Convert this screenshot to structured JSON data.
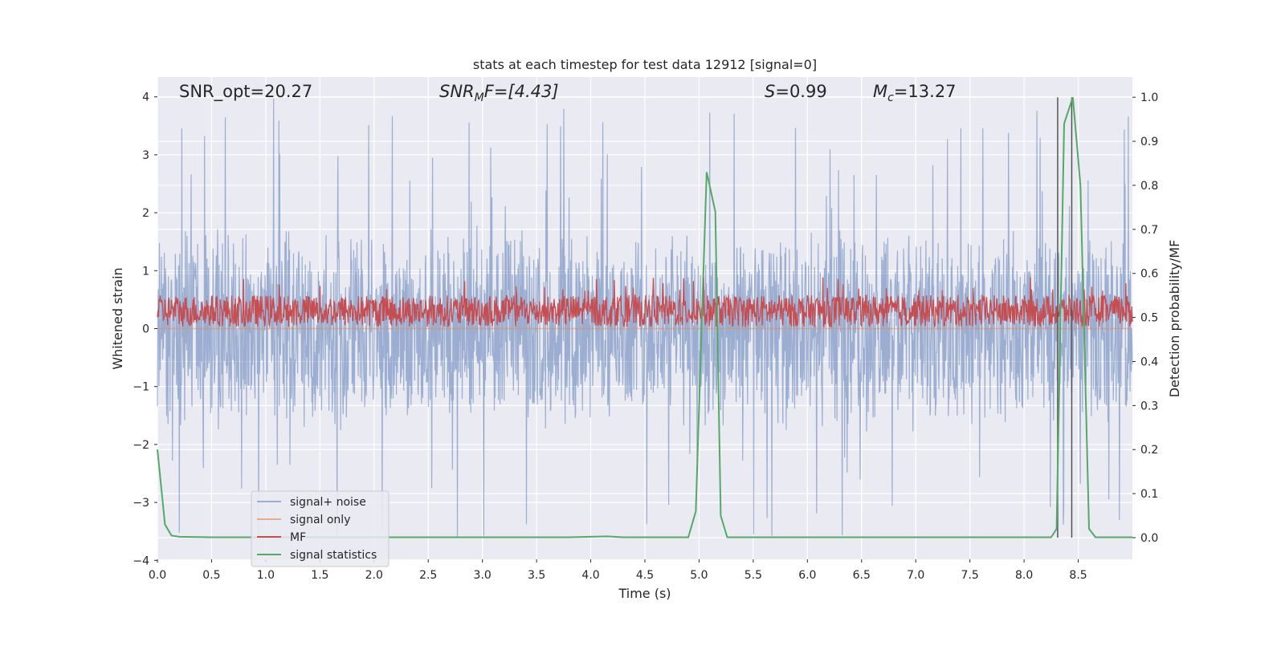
{
  "chart_data": {
    "type": "line",
    "title": "stats at each timestep for test data 12912 [signal=0]",
    "xlabel": "Time (s)",
    "ylabel_left": "Whitened strain",
    "ylabel_right": "Detection probability/MF",
    "xlim": [
      0.0,
      9.0
    ],
    "ylim_left": [
      -4,
      4.35
    ],
    "ylim_right": [
      -0.05,
      1.04
    ],
    "x_ticks": [
      "0.0",
      "0.5",
      "1.0",
      "1.5",
      "2.0",
      "2.5",
      "3.0",
      "3.5",
      "4.0",
      "4.5",
      "5.0",
      "5.5",
      "6.0",
      "6.5",
      "7.0",
      "7.5",
      "8.0",
      "8.5"
    ],
    "y_ticks_left": [
      "4",
      "3",
      "2",
      "1",
      "0",
      "−1",
      "−2",
      "−3",
      "−4"
    ],
    "y_ticks_right": [
      "1.0",
      "0.9",
      "0.8",
      "0.7",
      "0.6",
      "0.5",
      "0.4",
      "0.3",
      "0.2",
      "0.1",
      "0.0"
    ],
    "grid": true,
    "legend_position": "lower-left",
    "annotations": {
      "snr_opt": "SNR_opt=20.27",
      "snr_mf_main": "SNR",
      "snr_mf_sub": "M",
      "snr_mf_rest": "F=[4.43]",
      "s_main": "S",
      "s_rest": "=0.99",
      "mc_main": "M",
      "mc_sub": "c",
      "mc_rest": "=13.27"
    },
    "series": [
      {
        "name": "signal+ noise",
        "color": "#4c72b0",
        "note_values": "dense noise, approx range -3.3 to 4.0"
      },
      {
        "name": "signal only",
        "color": "#dd8452",
        "values_constant": 0.0
      },
      {
        "name": "MF",
        "color": "#c44e52",
        "note_values": "approx range 0.0 to 0.9"
      },
      {
        "name": "signal statistics",
        "color": "#55a868",
        "axis": "right",
        "x": [
          0.0,
          0.07,
          0.13,
          0.2,
          0.5,
          1.0,
          2.0,
          3.0,
          3.8,
          4.15,
          4.3,
          4.9,
          4.97,
          5.02,
          5.07,
          5.15,
          5.2,
          5.26,
          5.35,
          6.0,
          7.0,
          8.0,
          8.25,
          8.3,
          8.37,
          8.45,
          8.52,
          8.6,
          8.66,
          8.75,
          9.0
        ],
        "y": [
          0.2,
          0.03,
          0.005,
          0.002,
          0.001,
          0.001,
          0.001,
          0.001,
          0.001,
          0.003,
          0.001,
          0.001,
          0.06,
          0.45,
          0.83,
          0.74,
          0.05,
          0.001,
          0.001,
          0.001,
          0.001,
          0.001,
          0.001,
          0.02,
          0.94,
          1.0,
          0.8,
          0.02,
          0.001,
          0.001,
          0.001
        ]
      }
    ],
    "vertical_lines_x": [
      8.31,
      8.44
    ],
    "vline_color": "#555555"
  }
}
